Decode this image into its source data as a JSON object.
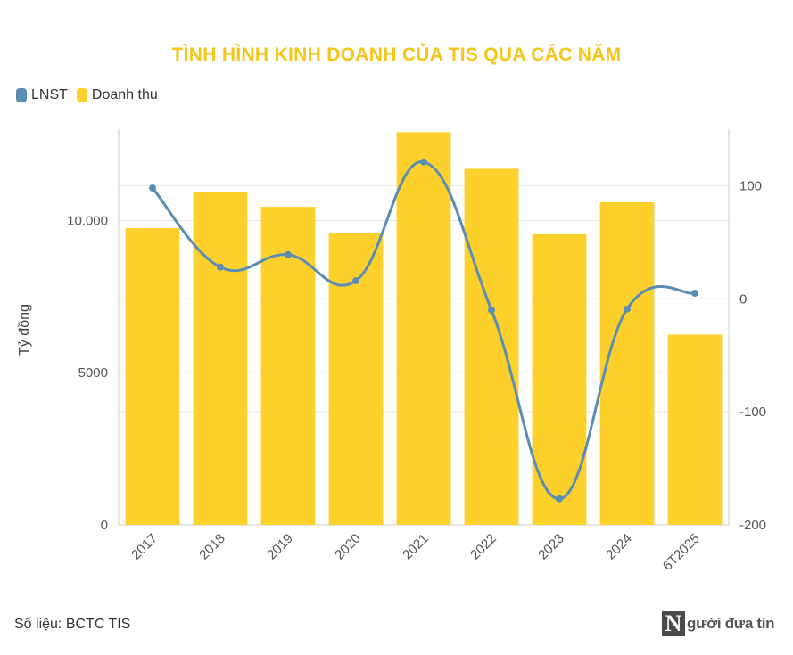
{
  "colors": {
    "revenue": "#fdd02c",
    "profit": "#5b8db3",
    "title": "#f5c518",
    "grid": "#e6e6e6"
  },
  "chart_data": {
    "type": "bar",
    "title": "TÌNH HÌNH KINH DOANH CỦA TIS QUA CÁC NĂM",
    "ylabel": "Tỷ đồng",
    "categories": [
      "2017",
      "2018",
      "2019",
      "2020",
      "2021",
      "2022",
      "2023",
      "2024",
      "6T2025"
    ],
    "series": [
      {
        "name": "Doanh thu",
        "type": "bar",
        "axis": "left",
        "values": [
          9750,
          10950,
          10450,
          9600,
          12900,
          11700,
          9550,
          10600,
          6250
        ]
      },
      {
        "name": "LNST",
        "type": "line",
        "axis": "right",
        "values": [
          98,
          28,
          39,
          16,
          121,
          -10,
          -177,
          -9,
          5
        ]
      }
    ],
    "ylim_left": [
      0,
      13000
    ],
    "yticks_left": [
      0,
      5000,
      10000
    ],
    "ytick_labels_left": [
      "0",
      "5000",
      "10.000"
    ],
    "ylim_right": [
      -200,
      150
    ],
    "yticks_right": [
      -200,
      -100,
      0,
      100
    ],
    "ytick_labels_right": [
      "-200",
      "-100",
      "0",
      "100"
    ],
    "legend": "top-left",
    "grid": true
  },
  "legend": {
    "items": [
      "LNST",
      "Doanh thu"
    ]
  },
  "footer": {
    "source": "Số liệu: BCTC TIS",
    "logo_letter": "N",
    "logo_text": "gười đưa tin"
  }
}
